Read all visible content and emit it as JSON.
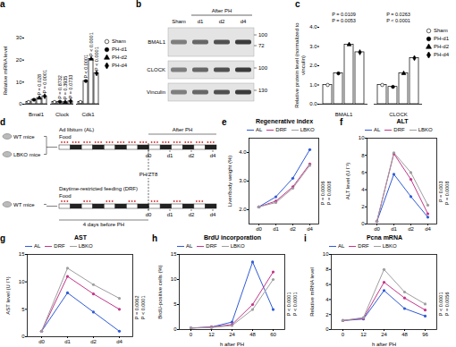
{
  "chart_data": [
    {
      "panel": "a",
      "type": "bar",
      "y_label": "Relative mRNA level",
      "categories": [
        "Bmal1",
        "Clock",
        "Cdk1"
      ],
      "series": [
        {
          "name": "Sham",
          "color": "#ffffff",
          "marker": "circle",
          "values": [
            1,
            1,
            1
          ]
        },
        {
          "name": "PH-d1",
          "color": "#000000",
          "marker": "circle",
          "values": [
            2.0,
            1.1,
            10.5
          ]
        },
        {
          "name": "PH-d2",
          "color": "#000000",
          "marker": "triangle",
          "values": [
            2.8,
            0.9,
            20.5
          ]
        },
        {
          "name": "PH-d4",
          "color": "#000000",
          "marker": "diamond",
          "values": [
            3.6,
            1.3,
            14
          ]
        }
      ],
      "ylim": [
        0,
        30
      ],
      "yticks": [
        0,
        10,
        20,
        30
      ],
      "legend": "right",
      "annotations": [
        {
          "category": "Bmal1",
          "series": "PH-d2",
          "text": "P = 0.028"
        },
        {
          "category": "Bmal1",
          "series": "PH-d4",
          "text": "P = 0.0001"
        },
        {
          "category": "Clock",
          "series": "PH-d1",
          "text": "P = 0.8732"
        },
        {
          "category": "Clock",
          "series": "PH-d2",
          "text": "P = 0.3935"
        },
        {
          "category": "Clock",
          "series": "PH-d4",
          "text": "P = 0.0733"
        },
        {
          "category": "Cdk1",
          "series": "PH-d1",
          "text": "P < 0.0001"
        },
        {
          "category": "Cdk1",
          "series": "PH-d2",
          "text": "P < 0.0001"
        },
        {
          "category": "Cdk1",
          "series": "PH-d4",
          "text": "P < 0.0001"
        }
      ]
    },
    {
      "panel": "b",
      "type": "blot",
      "columns": [
        "Sham",
        "d1",
        "d2",
        "d4"
      ],
      "column_group": {
        "label": "After PH",
        "columns": [
          "d1",
          "d2",
          "d4"
        ]
      },
      "rows": [
        {
          "name": "BMAL1",
          "markers": [
            100,
            72
          ]
        },
        {
          "name": "CLOCK",
          "markers": [
            100
          ]
        },
        {
          "name": "Vinculin",
          "markers": [
            130
          ]
        }
      ]
    },
    {
      "panel": "c",
      "type": "bar",
      "y_label": "Relative protein level (normalized to vinculin)",
      "categories": [
        "BMAL1",
        "CLOCK"
      ],
      "series": [
        {
          "name": "Sham",
          "color": "#ffffff",
          "marker": "circle",
          "values": [
            1,
            1
          ]
        },
        {
          "name": "PH-d1",
          "color": "#000000",
          "marker": "circle",
          "values": [
            1.6,
            0.9
          ]
        },
        {
          "name": "PH-d2",
          "color": "#000000",
          "marker": "triangle",
          "values": [
            3.1,
            1.6
          ]
        },
        {
          "name": "PH-d4",
          "color": "#000000",
          "marker": "diamond",
          "values": [
            2.7,
            2.4
          ]
        }
      ],
      "ylim": [
        0,
        4
      ],
      "yticks": [
        0,
        1,
        2,
        3,
        4
      ],
      "legend": "right",
      "annotations": [
        {
          "category": "BMAL1",
          "text": "P = 0.0109"
        },
        {
          "category": "BMAL1",
          "text": "P = 0.0053"
        },
        {
          "category": "CLOCK",
          "text": "P = 0.0263"
        },
        {
          "category": "CLOCK",
          "text": "P < 0.0001"
        }
      ]
    },
    {
      "panel": "d",
      "type": "diagram",
      "groups": [
        {
          "mice": [
            "WT mice",
            "LBKO mice"
          ],
          "feeding": "Ad libitum (AL)"
        },
        {
          "mice": [
            "WT mice"
          ],
          "feeding": "Daytime-restricted feeding (DRF)"
        }
      ],
      "food_label": "Food",
      "after_label": "After PH",
      "ph_label": "PH/ZT8",
      "pre_label": "4 days before PH",
      "days": [
        "d0",
        "d1",
        "d2",
        "d4"
      ]
    },
    {
      "panel": "e",
      "type": "line",
      "title": "Regenerative index",
      "y_label": "Liver/body weight (%)",
      "categories": [
        "d0",
        "d1",
        "d2",
        "d4"
      ],
      "series": [
        {
          "name": "AL",
          "color": "#2f5bd6",
          "marker": "circle",
          "values": [
            2.1,
            2.45,
            3.1,
            4.1
          ]
        },
        {
          "name": "DRF",
          "color": "#c2378a",
          "marker": "circle",
          "values": [
            2.1,
            2.3,
            2.8,
            3.6
          ]
        },
        {
          "name": "LBKO",
          "color": "#9e9e9e",
          "marker": "circle",
          "values": [
            2.1,
            2.25,
            2.75,
            3.55
          ]
        }
      ],
      "ylim": [
        1.5,
        4.5
      ],
      "yticks": [
        2,
        3,
        4
      ],
      "legend": "top",
      "annotations": [
        {
          "text": "P = 0.0006"
        },
        {
          "text": "P = 0.0008"
        }
      ]
    },
    {
      "panel": "f",
      "type": "line",
      "title": "ALT",
      "y_label": "ALT level (U l⁻¹)",
      "categories": [
        "d0",
        "d1",
        "d2",
        "d4"
      ],
      "series": [
        {
          "name": "AL",
          "color": "#2f5bd6",
          "marker": "circle",
          "values": [
            0.3,
            5.8,
            3.2,
            0.8
          ]
        },
        {
          "name": "DRF",
          "color": "#c2378a",
          "marker": "circle",
          "values": [
            0.3,
            8.2,
            5.2,
            1.2
          ]
        },
        {
          "name": "LBKO",
          "color": "#9e9e9e",
          "marker": "circle",
          "values": [
            0.3,
            8.3,
            6.0,
            2.2
          ]
        }
      ],
      "ylim": [
        0,
        10
      ],
      "yticks": [
        0,
        2,
        4,
        6,
        8,
        10
      ],
      "legend": "top",
      "annotations": [
        {
          "text": "P = 0.003"
        },
        {
          "text": "P = 0.0008"
        }
      ]
    },
    {
      "panel": "g",
      "type": "line",
      "title": "AST",
      "y_label": "AST level (U l⁻¹)",
      "categories": [
        "d0",
        "d1",
        "d2",
        "d4"
      ],
      "series": [
        {
          "name": "AL",
          "color": "#2f5bd6",
          "marker": "circle",
          "values": [
            1,
            8,
            4.5,
            1
          ]
        },
        {
          "name": "DRF",
          "color": "#c2378a",
          "marker": "circle",
          "values": [
            1,
            11,
            7.8,
            5
          ]
        },
        {
          "name": "LBKO",
          "color": "#9e9e9e",
          "marker": "circle",
          "values": [
            1,
            12.5,
            9.5,
            7
          ]
        }
      ],
      "ylim": [
        0,
        15
      ],
      "yticks": [
        0,
        5,
        10,
        15
      ],
      "legend": "top",
      "annotations": [
        {
          "text": "P = 0.0062"
        },
        {
          "text": "P < 0.0001"
        }
      ]
    },
    {
      "panel": "h",
      "type": "line",
      "title": "BrdU incorporation",
      "y_label": "BrdU-positive cells (%)",
      "x_label": "h after PH",
      "categories": [
        "0",
        "12",
        "24",
        "48",
        "60"
      ],
      "series": [
        {
          "name": "AL",
          "color": "#2f5bd6",
          "marker": "circle",
          "values": [
            0.3,
            0.5,
            1.5,
            13.5,
            4
          ]
        },
        {
          "name": "DRF",
          "color": "#c2378a",
          "marker": "circle",
          "values": [
            0.3,
            0.5,
            1,
            5,
            11.5
          ]
        },
        {
          "name": "LBKO",
          "color": "#9e9e9e",
          "marker": "circle",
          "values": [
            0.3,
            0.4,
            0.8,
            4,
            10
          ]
        }
      ],
      "ylim": [
        0,
        15
      ],
      "yticks": [
        0,
        5,
        10,
        15
      ],
      "legend": "top",
      "annotations": [
        {
          "text": "P < 0.0001"
        },
        {
          "text": "P < 0.0001"
        }
      ]
    },
    {
      "panel": "i",
      "type": "line",
      "title": "Pcna mRNA",
      "y_label": "Relative mRNA level",
      "x_label": "h after PH",
      "categories": [
        "0",
        "12",
        "24",
        "48",
        "96"
      ],
      "series": [
        {
          "name": "AL",
          "color": "#2f5bd6",
          "marker": "circle",
          "values": [
            1.2,
            1.4,
            5.2,
            2.8,
            1.8
          ]
        },
        {
          "name": "DRF",
          "color": "#c2378a",
          "marker": "circle",
          "values": [
            1.2,
            1.5,
            6.3,
            4.2,
            2.6
          ]
        },
        {
          "name": "LBKO",
          "color": "#9e9e9e",
          "marker": "circle",
          "values": [
            1.2,
            1.6,
            8,
            5,
            3.4
          ]
        }
      ],
      "ylim": [
        0,
        10
      ],
      "yticks": [
        0,
        2,
        4,
        6,
        8,
        10
      ],
      "legend": "top",
      "annotations": [
        {
          "text": "P < 0.0001"
        },
        {
          "text": "P = 0.0056"
        }
      ]
    }
  ]
}
